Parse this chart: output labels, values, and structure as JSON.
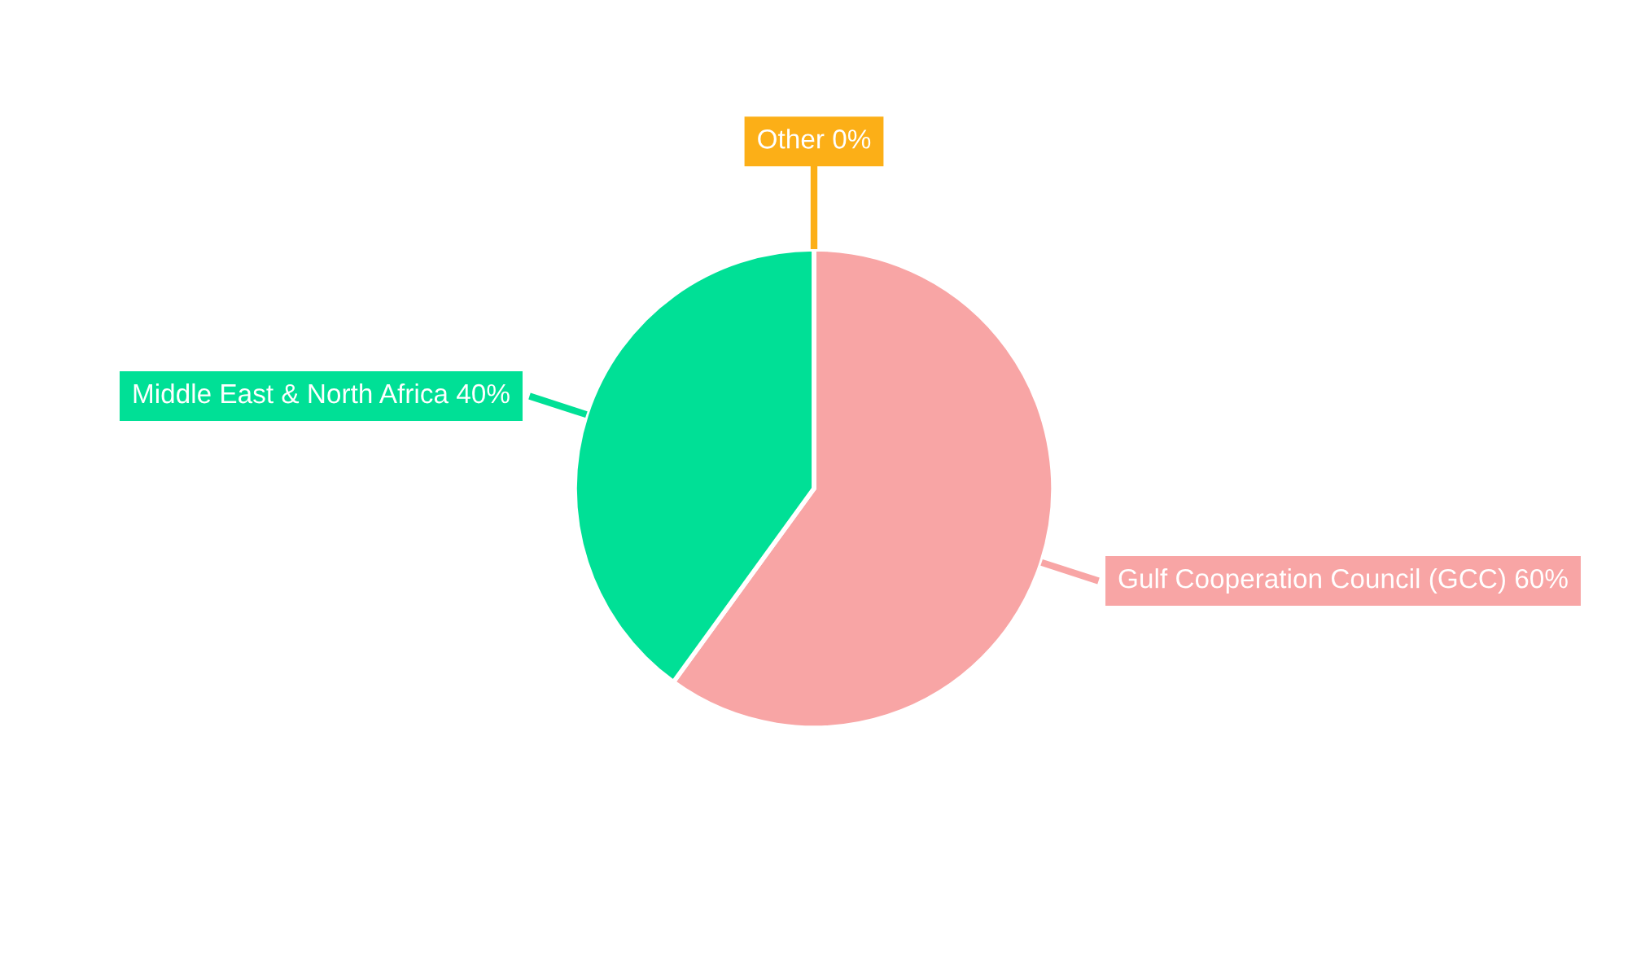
{
  "chart_data": {
    "type": "pie",
    "categories": [
      "Gulf Cooperation Council (GCC)",
      "Middle East & North Africa",
      "Other"
    ],
    "values": [
      60,
      40,
      0
    ],
    "value_labels": [
      "60%",
      "40%",
      "0%"
    ],
    "colors": [
      "#f8a5a5",
      "#00e096",
      "#fcaf17"
    ]
  }
}
